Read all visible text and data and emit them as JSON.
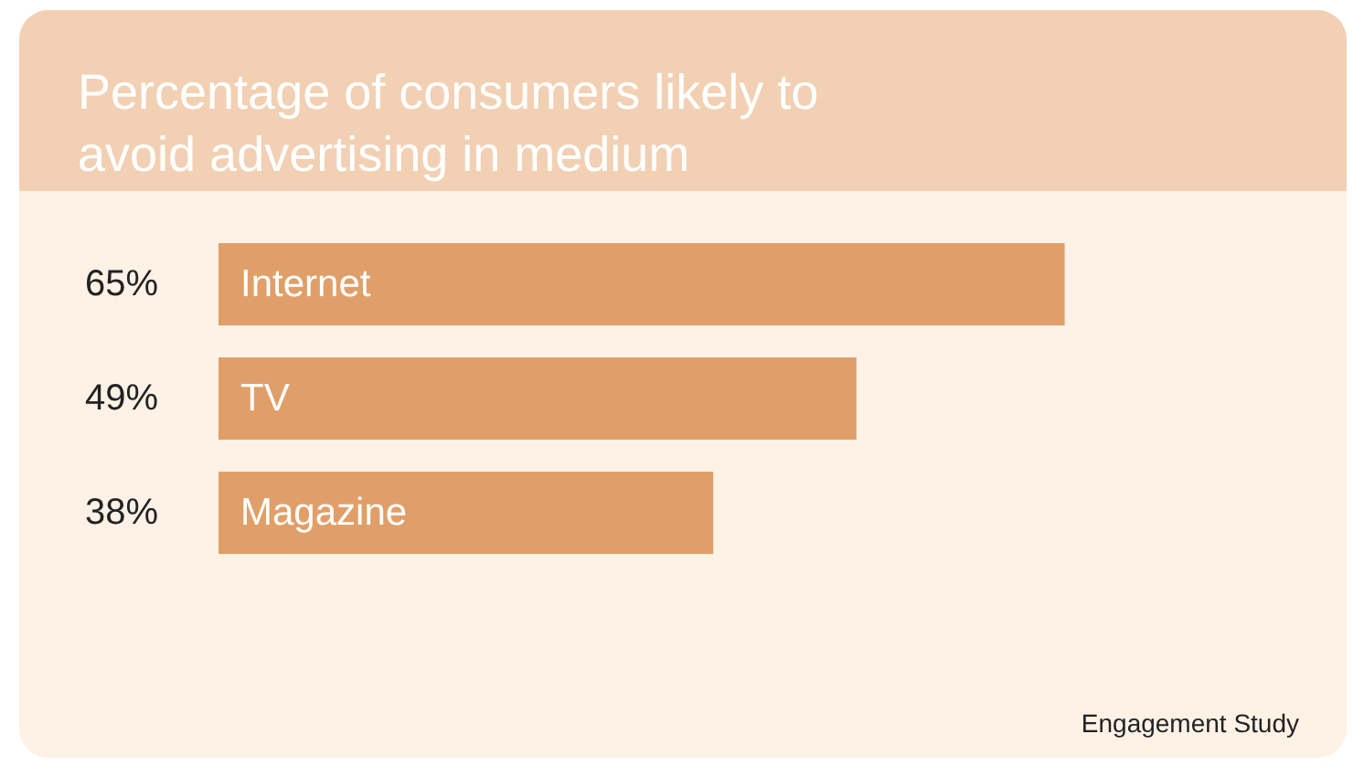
{
  "chart_data": {
    "type": "bar",
    "orientation": "horizontal",
    "title": "Percentage of consumers likely to avoid advertising in medium",
    "categories": [
      "Internet",
      "TV",
      "Magazine"
    ],
    "values": [
      65,
      49,
      38
    ],
    "value_labels": [
      "65%",
      "49%",
      "38%"
    ],
    "color": "#e09f68",
    "annotations": [
      "Engagement Study"
    ]
  }
}
